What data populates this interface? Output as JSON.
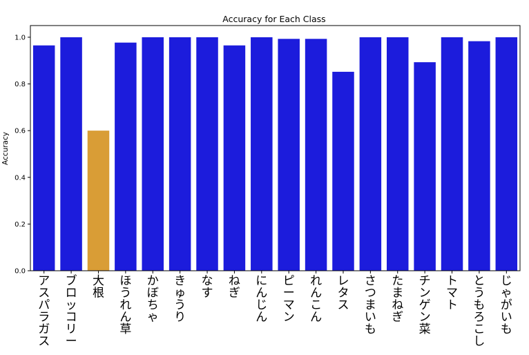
{
  "chart_data": {
    "type": "bar",
    "title": "Accuracy for Each Class",
    "xlabel": "",
    "ylabel": "Accuracy",
    "ylim": [
      0,
      1.05
    ],
    "yticks": [
      "0.0",
      "0.2",
      "0.4",
      "0.6",
      "0.8",
      "1.0"
    ],
    "grid": false,
    "categories": [
      "アスパラガス",
      "ブロッコリー",
      "大根",
      "ほうれん草",
      "かぼちゃ",
      "きゅうり",
      "なす",
      "ねぎ",
      "にんじん",
      "ピーマン",
      "れんこん",
      "レタス",
      "さつまいも",
      "たまねぎ",
      "チンゲン菜",
      "トマト",
      "とうもろこし",
      "じゃがいも"
    ],
    "values": [
      0.965,
      1.0,
      0.6,
      0.977,
      1.0,
      1.0,
      1.0,
      0.965,
      1.0,
      0.993,
      0.993,
      0.852,
      1.0,
      1.0,
      0.893,
      1.0,
      0.983,
      1.0
    ],
    "colors": {
      "default": "#1c1cdc",
      "highlight": "#d99d36",
      "highlight_category": "大根"
    }
  }
}
